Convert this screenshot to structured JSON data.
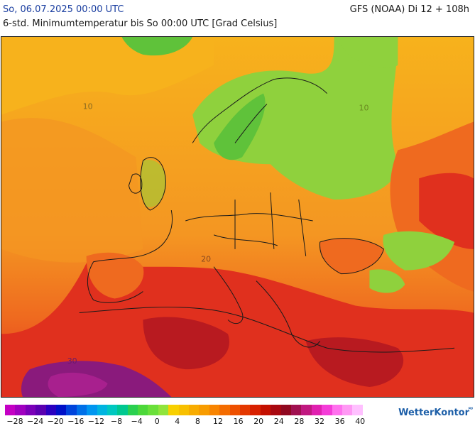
{
  "header": {
    "date": "So, 06.07.2025 00:00 UTC",
    "model": "GFS (NOAA) Di 12 + 108h",
    "subtitle": "6-std. Minimumtemperatur bis So 00:00 UTC [Grad Celsius]"
  },
  "map": {
    "contour_labels": [
      {
        "text": "10",
        "region": "north-atlantic"
      },
      {
        "text": "10",
        "region": "russia-north"
      },
      {
        "text": "30",
        "region": "north-africa"
      },
      {
        "text": "20",
        "region": "central-europe"
      }
    ],
    "colors": {
      "cold": "#8fd13d",
      "cool": "#5fc23a",
      "mild": "#f7b21c",
      "warm": "#f49622",
      "hot": "#ef6a1f",
      "veryhot": "#e0301e",
      "extreme": "#b81a20",
      "purple": "#8a1a7c",
      "border": "#1a1a1a"
    }
  },
  "legend": {
    "colors": [
      "#c400c4",
      "#a000c0",
      "#7a00b8",
      "#5a00b0",
      "#2a00c0",
      "#0010c8",
      "#0044dc",
      "#0070e8",
      "#0096f0",
      "#00b4e0",
      "#00c8c0",
      "#00c890",
      "#2ad050",
      "#4cd83a",
      "#6ae03a",
      "#90e43c",
      "#f8d000",
      "#f8c000",
      "#f8ac00",
      "#f89c00",
      "#f88400",
      "#f46c00",
      "#ee5000",
      "#e43800",
      "#d82000",
      "#c41000",
      "#a80810",
      "#900820",
      "#a01050",
      "#c01880",
      "#e020b0",
      "#f43cd8",
      "#ff70ee",
      "#ff98f4",
      "#ffc0ff"
    ],
    "ticks": [
      "−28",
      "−24",
      "−20",
      "−16",
      "−12",
      "−8",
      "−4",
      "0",
      "4",
      "8",
      "12",
      "16",
      "20",
      "24",
      "28",
      "32",
      "36",
      "40"
    ]
  },
  "brand": {
    "name": "WetterKontor",
    "mark": "≈"
  }
}
